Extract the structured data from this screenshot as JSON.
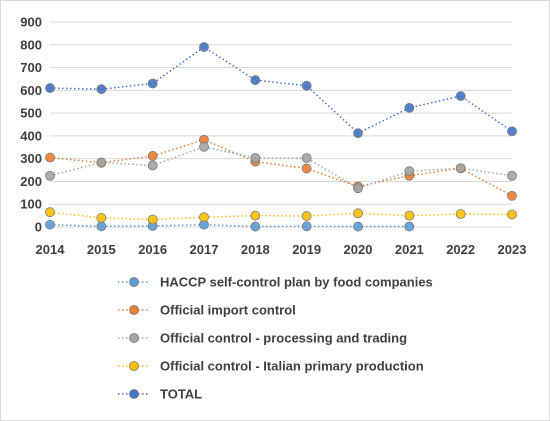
{
  "chart_data": {
    "type": "line",
    "categories": [
      "2014",
      "2015",
      "2016",
      "2017",
      "2018",
      "2019",
      "2020",
      "2021",
      "2022",
      "2023"
    ],
    "ylim": [
      0,
      900
    ],
    "yticks": [
      0,
      100,
      200,
      300,
      400,
      500,
      600,
      700,
      800,
      900
    ],
    "grid": true,
    "legend_position": "bottom",
    "series": [
      {
        "name": "HACCP self-control plan by food companies",
        "values": [
          10,
          3,
          5,
          10,
          2,
          3,
          2,
          2,
          null,
          null
        ],
        "color": "#5B9BD5"
      },
      {
        "name": "Official import control",
        "values": [
          305,
          282,
          312,
          383,
          287,
          257,
          178,
          225,
          258,
          137
        ],
        "color": "#ED7D31"
      },
      {
        "name": "Official control - processing and trading",
        "values": [
          225,
          283,
          270,
          352,
          303,
          303,
          170,
          245,
          258,
          225
        ],
        "color": "#A5A5A5"
      },
      {
        "name": "Official control - Italian primary production",
        "values": [
          65,
          40,
          33,
          43,
          50,
          48,
          60,
          50,
          57,
          55
        ],
        "color": "#FFC000"
      },
      {
        "name": "TOTAL",
        "values": [
          610,
          605,
          630,
          790,
          645,
          620,
          412,
          523,
          575,
          420
        ],
        "color": "#4472C4"
      }
    ]
  }
}
